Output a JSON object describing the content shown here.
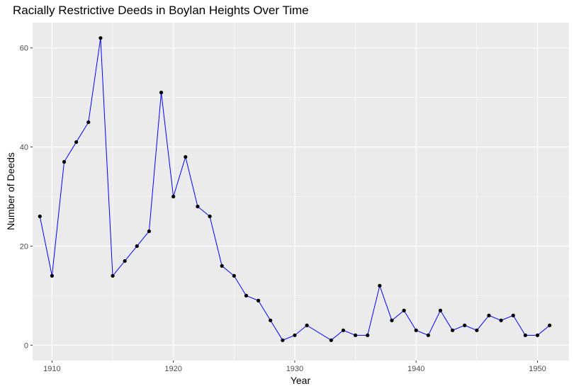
{
  "chart_data": {
    "type": "line",
    "title": "Racially Restrictive Deeds in Boylan Heights Over Time",
    "xlabel": "Year",
    "ylabel": "Number of Deeds",
    "x_ticks": [
      1910,
      1920,
      1930,
      1940,
      1950
    ],
    "y_ticks": [
      0,
      20,
      40,
      60
    ],
    "xlim": [
      1908.4,
      1952.6
    ],
    "ylim": [
      -3.1,
      65.1
    ],
    "grid": true,
    "line_color": "#0000ff",
    "point_color": "#000000",
    "panel_background": "#ebebeb",
    "series": [
      {
        "x": [
          1909,
          1910,
          1911,
          1912,
          1913,
          1914,
          1915,
          1916,
          1917,
          1918,
          1919,
          1920,
          1921,
          1922,
          1923,
          1924,
          1925,
          1926,
          1927,
          1928,
          1929,
          1930,
          1931,
          1933,
          1934,
          1935,
          1936,
          1937,
          1938,
          1939,
          1940,
          1941,
          1942,
          1943,
          1944,
          1945,
          1946,
          1947,
          1948,
          1949,
          1950,
          1951
        ],
        "values": [
          26,
          14,
          37,
          41,
          45,
          62,
          14,
          17,
          20,
          23,
          51,
          30,
          38,
          28,
          26,
          16,
          14,
          10,
          9,
          5,
          1,
          2,
          4,
          1,
          3,
          2,
          2,
          12,
          5,
          7,
          3,
          2,
          7,
          3,
          4,
          3,
          6,
          5,
          6,
          2,
          2,
          4
        ]
      }
    ]
  }
}
